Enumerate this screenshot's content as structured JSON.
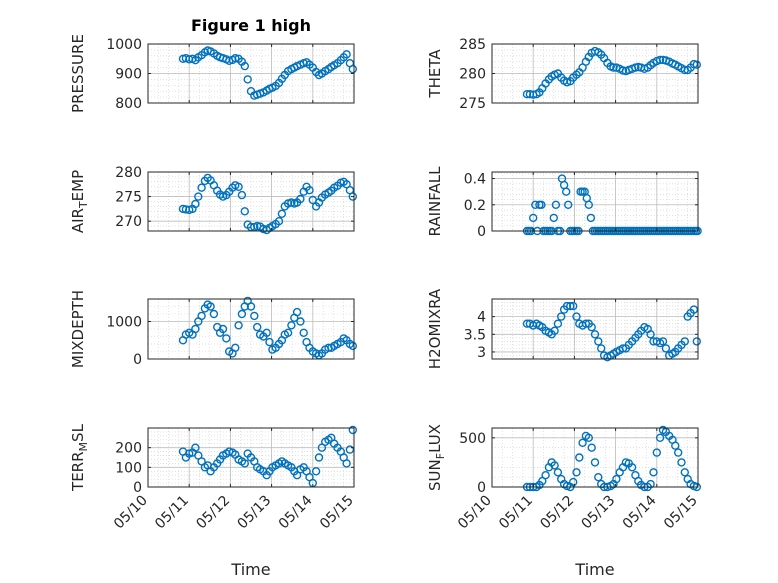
{
  "figure": {
    "title": "Figure 1 high",
    "xlabel": "Time",
    "marker_color": "#0072BD",
    "x_ticks": [
      "05/10",
      "05/11",
      "05/12",
      "05/13",
      "05/14",
      "05/15"
    ],
    "x_range": [
      "2017-05-10",
      "2017-05-15"
    ]
  },
  "chart_data": [
    {
      "type": "scatter",
      "ylabel": "PRESSURE",
      "ylim": [
        800,
        1000
      ],
      "yticks": [
        800,
        900,
        1000
      ],
      "grid": true,
      "x_days": [
        0.85,
        0.92,
        1.0,
        1.08,
        1.15,
        1.22,
        1.3,
        1.38,
        1.45,
        1.52,
        1.6,
        1.68,
        1.75,
        1.82,
        1.9,
        1.97,
        2.05,
        2.12,
        2.2,
        2.28,
        2.35,
        2.42,
        2.5,
        2.58,
        2.65,
        2.72,
        2.8,
        2.88,
        2.95,
        3.02,
        3.1,
        3.18,
        3.25,
        3.32,
        3.4,
        3.48,
        3.55,
        3.62,
        3.7,
        3.78,
        3.85,
        3.92,
        4.0,
        4.08,
        4.15,
        4.22,
        4.3,
        4.38,
        4.45,
        4.52,
        4.6,
        4.68,
        4.75,
        4.82,
        4.9,
        4.97
      ],
      "values": [
        950,
        952,
        948,
        950,
        945,
        955,
        962,
        972,
        978,
        975,
        968,
        960,
        955,
        952,
        948,
        943,
        946,
        952,
        950,
        940,
        925,
        880,
        840,
        825,
        828,
        832,
        836,
        842,
        848,
        852,
        858,
        868,
        882,
        895,
        908,
        915,
        920,
        925,
        930,
        935,
        938,
        930,
        920,
        905,
        895,
        900,
        908,
        915,
        922,
        928,
        935,
        945,
        955,
        965,
        935,
        915
      ]
    },
    {
      "type": "scatter",
      "ylabel": "THETA",
      "ylim": [
        275,
        285
      ],
      "yticks": [
        275,
        280,
        285
      ],
      "grid": true,
      "x_days": [
        0.85,
        0.92,
        1.0,
        1.08,
        1.15,
        1.22,
        1.3,
        1.38,
        1.45,
        1.52,
        1.6,
        1.68,
        1.75,
        1.82,
        1.9,
        1.97,
        2.05,
        2.12,
        2.2,
        2.28,
        2.35,
        2.42,
        2.5,
        2.58,
        2.65,
        2.72,
        2.8,
        2.88,
        2.95,
        3.02,
        3.1,
        3.18,
        3.25,
        3.32,
        3.4,
        3.48,
        3.55,
        3.62,
        3.7,
        3.78,
        3.85,
        3.92,
        4.0,
        4.08,
        4.15,
        4.22,
        4.3,
        4.38,
        4.45,
        4.52,
        4.6,
        4.68,
        4.75,
        4.82,
        4.9,
        4.97
      ],
      "values": [
        276.5,
        276.5,
        276.4,
        276.5,
        276.8,
        277.5,
        278.3,
        279.0,
        279.5,
        279.8,
        280.0,
        279.3,
        278.8,
        278.5,
        278.7,
        279.3,
        279.8,
        280.2,
        281.0,
        282.0,
        282.8,
        283.5,
        283.8,
        283.6,
        283.2,
        282.6,
        281.8,
        281.2,
        281.0,
        281.0,
        280.8,
        280.5,
        280.4,
        280.6,
        280.8,
        281.0,
        281.1,
        281.0,
        280.8,
        281.0,
        281.4,
        281.8,
        282.1,
        282.3,
        282.3,
        282.2,
        282.0,
        281.7,
        281.5,
        281.2,
        280.9,
        280.6,
        280.6,
        281.0,
        281.6,
        281.5
      ]
    },
    {
      "type": "scatter",
      "ylabel": "AIR_T_EMP",
      "ylim": [
        268,
        280
      ],
      "yticks": [
        270,
        275,
        280
      ],
      "grid": true,
      "x_days": [
        0.85,
        0.92,
        1.0,
        1.08,
        1.15,
        1.22,
        1.3,
        1.38,
        1.45,
        1.52,
        1.6,
        1.68,
        1.75,
        1.82,
        1.9,
        1.97,
        2.05,
        2.12,
        2.2,
        2.28,
        2.35,
        2.42,
        2.5,
        2.58,
        2.65,
        2.72,
        2.8,
        2.88,
        2.95,
        3.02,
        3.1,
        3.18,
        3.25,
        3.32,
        3.4,
        3.48,
        3.55,
        3.62,
        3.7,
        3.78,
        3.85,
        3.92,
        4.0,
        4.08,
        4.15,
        4.22,
        4.3,
        4.38,
        4.45,
        4.52,
        4.6,
        4.68,
        4.75,
        4.82,
        4.9,
        4.97
      ],
      "values": [
        272.5,
        272.4,
        272.3,
        272.5,
        273.5,
        275.0,
        276.8,
        278.2,
        278.8,
        278.3,
        277.3,
        276.2,
        275.4,
        275.0,
        275.3,
        276.0,
        276.8,
        277.3,
        277.0,
        275.3,
        272.0,
        269.3,
        268.8,
        268.8,
        269.0,
        268.9,
        268.4,
        268.2,
        268.6,
        269.0,
        269.4,
        270.0,
        271.5,
        273.0,
        273.6,
        273.8,
        273.6,
        273.8,
        274.5,
        276.0,
        277.0,
        276.3,
        274.3,
        273.0,
        273.8,
        274.8,
        275.4,
        275.8,
        276.2,
        276.8,
        277.2,
        277.8,
        278.0,
        277.5,
        276.3,
        275.0
      ]
    },
    {
      "type": "scatter",
      "ylabel": "RAINFALL",
      "ylim": [
        0,
        0.45
      ],
      "yticks": [
        0,
        0.2,
        0.4
      ],
      "grid": true,
      "x_days": [
        0.85,
        0.9,
        0.95,
        1.0,
        1.05,
        1.1,
        1.15,
        1.2,
        1.25,
        1.3,
        1.35,
        1.4,
        1.45,
        1.5,
        1.55,
        1.6,
        1.65,
        1.7,
        1.75,
        1.8,
        1.85,
        1.9,
        1.95,
        2.0,
        2.05,
        2.1,
        2.15,
        2.2,
        2.25,
        2.3,
        2.35,
        2.4,
        2.45,
        2.5,
        2.55,
        2.6,
        2.65,
        2.7,
        2.75,
        2.8,
        2.85,
        2.9,
        2.95,
        3.0,
        3.05,
        3.1,
        3.15,
        3.2,
        3.25,
        3.3,
        3.35,
        3.4,
        3.45,
        3.5,
        3.55,
        3.6,
        3.65,
        3.7,
        3.75,
        3.8,
        3.85,
        3.9,
        3.95,
        4.0,
        4.05,
        4.1,
        4.15,
        4.2,
        4.25,
        4.3,
        4.35,
        4.4,
        4.45,
        4.5,
        4.55,
        4.6,
        4.65,
        4.7,
        4.75,
        4.8,
        4.85,
        4.9,
        4.95,
        4.99
      ],
      "values": [
        0,
        0,
        0,
        0.1,
        0.2,
        0,
        0.2,
        0.2,
        0,
        0,
        0,
        0,
        0,
        0.1,
        0.2,
        0,
        0,
        0.4,
        0.35,
        0.3,
        0.2,
        0,
        0,
        0,
        0,
        0,
        0.3,
        0.3,
        0.3,
        0.25,
        0.2,
        0.1,
        0,
        0,
        0,
        0,
        0,
        0,
        0,
        0,
        0,
        0,
        0,
        0,
        0,
        0,
        0,
        0,
        0,
        0,
        0,
        0,
        0,
        0,
        0,
        0,
        0,
        0,
        0,
        0,
        0,
        0,
        0,
        0,
        0,
        0,
        0,
        0,
        0,
        0,
        0,
        0,
        0,
        0,
        0,
        0,
        0,
        0,
        0,
        0,
        0,
        0,
        0,
        0
      ]
    },
    {
      "type": "scatter",
      "ylabel": "MIXDEPTH",
      "ylim": [
        0,
        1600
      ],
      "yticks": [
        0,
        1000
      ],
      "grid": true,
      "x_days": [
        0.85,
        0.92,
        1.0,
        1.08,
        1.15,
        1.22,
        1.3,
        1.38,
        1.45,
        1.52,
        1.6,
        1.68,
        1.75,
        1.82,
        1.9,
        1.97,
        2.05,
        2.12,
        2.2,
        2.28,
        2.35,
        2.42,
        2.5,
        2.58,
        2.65,
        2.72,
        2.8,
        2.88,
        2.95,
        3.02,
        3.1,
        3.18,
        3.25,
        3.32,
        3.4,
        3.48,
        3.55,
        3.62,
        3.7,
        3.78,
        3.85,
        3.92,
        4.0,
        4.08,
        4.15,
        4.22,
        4.3,
        4.38,
        4.45,
        4.52,
        4.6,
        4.68,
        4.75,
        4.82,
        4.9,
        4.97
      ],
      "values": [
        500,
        650,
        700,
        650,
        800,
        1000,
        1150,
        1350,
        1450,
        1400,
        1200,
        850,
        700,
        800,
        550,
        200,
        150,
        300,
        900,
        1200,
        1400,
        1550,
        1400,
        1150,
        850,
        650,
        600,
        700,
        450,
        250,
        300,
        400,
        500,
        650,
        700,
        900,
        1100,
        1250,
        1000,
        700,
        450,
        300,
        200,
        150,
        100,
        150,
        250,
        300,
        300,
        350,
        400,
        450,
        550,
        500,
        400,
        350
      ]
    },
    {
      "type": "scatter",
      "ylabel": "H2OMIXRA",
      "ylim": [
        2.8,
        4.5
      ],
      "yticks": [
        3,
        3.5,
        4
      ],
      "grid": true,
      "x_days": [
        0.85,
        0.92,
        1.0,
        1.08,
        1.15,
        1.22,
        1.3,
        1.38,
        1.45,
        1.52,
        1.6,
        1.68,
        1.75,
        1.82,
        1.9,
        1.97,
        2.05,
        2.12,
        2.2,
        2.28,
        2.35,
        2.42,
        2.5,
        2.58,
        2.65,
        2.72,
        2.8,
        2.88,
        2.95,
        3.02,
        3.1,
        3.18,
        3.25,
        3.32,
        3.4,
        3.48,
        3.55,
        3.62,
        3.7,
        3.78,
        3.85,
        3.92,
        4.0,
        4.08,
        4.15,
        4.22,
        4.3,
        4.38,
        4.45,
        4.52,
        4.6,
        4.68,
        4.75,
        4.82,
        4.9,
        4.97
      ],
      "values": [
        3.8,
        3.8,
        3.75,
        3.8,
        3.75,
        3.7,
        3.6,
        3.55,
        3.5,
        3.6,
        3.8,
        4.0,
        4.2,
        4.3,
        4.3,
        4.3,
        4.0,
        3.8,
        3.75,
        3.8,
        3.8,
        3.7,
        3.5,
        3.3,
        3.1,
        2.9,
        2.85,
        2.9,
        2.95,
        3.0,
        3.05,
        3.1,
        3.1,
        3.2,
        3.3,
        3.4,
        3.5,
        3.6,
        3.7,
        3.65,
        3.5,
        3.3,
        3.3,
        3.25,
        3.3,
        3.1,
        2.9,
        2.95,
        3.0,
        3.1,
        3.2,
        3.3,
        4.0,
        4.1,
        4.2,
        3.3
      ]
    },
    {
      "type": "scatter",
      "ylabel": "TERR_M_SL",
      "ylim": [
        0,
        300
      ],
      "yticks": [
        0,
        100,
        200
      ],
      "grid": true,
      "x_days": [
        0.85,
        0.92,
        1.0,
        1.08,
        1.15,
        1.22,
        1.3,
        1.38,
        1.45,
        1.52,
        1.6,
        1.68,
        1.75,
        1.82,
        1.9,
        1.97,
        2.05,
        2.12,
        2.2,
        2.28,
        2.35,
        2.42,
        2.5,
        2.58,
        2.65,
        2.72,
        2.8,
        2.88,
        2.95,
        3.02,
        3.1,
        3.18,
        3.25,
        3.32,
        3.4,
        3.48,
        3.55,
        3.62,
        3.7,
        3.78,
        3.85,
        3.92,
        4.0,
        4.08,
        4.15,
        4.22,
        4.3,
        4.38,
        4.45,
        4.52,
        4.6,
        4.68,
        4.75,
        4.82,
        4.9,
        4.97
      ],
      "values": [
        180,
        150,
        170,
        175,
        200,
        160,
        130,
        100,
        110,
        80,
        100,
        120,
        140,
        160,
        170,
        180,
        175,
        165,
        140,
        130,
        120,
        170,
        150,
        130,
        100,
        90,
        80,
        60,
        80,
        100,
        110,
        120,
        130,
        120,
        110,
        100,
        80,
        60,
        90,
        100,
        80,
        50,
        20,
        80,
        150,
        200,
        230,
        240,
        250,
        220,
        200,
        180,
        150,
        120,
        190,
        290
      ]
    },
    {
      "type": "scatter",
      "ylabel": "SUN_F_LUX",
      "ylim": [
        0,
        600
      ],
      "yticks": [
        0,
        500
      ],
      "grid": true,
      "x_days": [
        0.85,
        0.92,
        1.0,
        1.08,
        1.15,
        1.22,
        1.3,
        1.38,
        1.45,
        1.52,
        1.6,
        1.68,
        1.75,
        1.82,
        1.9,
        1.97,
        2.05,
        2.12,
        2.2,
        2.28,
        2.35,
        2.42,
        2.5,
        2.58,
        2.65,
        2.72,
        2.8,
        2.88,
        2.95,
        3.02,
        3.1,
        3.18,
        3.25,
        3.32,
        3.4,
        3.48,
        3.55,
        3.62,
        3.7,
        3.78,
        3.85,
        3.92,
        4.0,
        4.08,
        4.15,
        4.22,
        4.3,
        4.38,
        4.45,
        4.52,
        4.6,
        4.68,
        4.75,
        4.82,
        4.9,
        4.97
      ],
      "values": [
        0,
        0,
        0,
        0,
        20,
        60,
        120,
        200,
        250,
        220,
        150,
        80,
        30,
        10,
        0,
        50,
        150,
        300,
        450,
        520,
        500,
        400,
        250,
        100,
        30,
        0,
        0,
        10,
        30,
        80,
        150,
        200,
        250,
        240,
        200,
        120,
        60,
        20,
        0,
        0,
        30,
        150,
        350,
        500,
        580,
        560,
        520,
        480,
        420,
        350,
        250,
        150,
        80,
        30,
        10,
        0
      ]
    }
  ]
}
